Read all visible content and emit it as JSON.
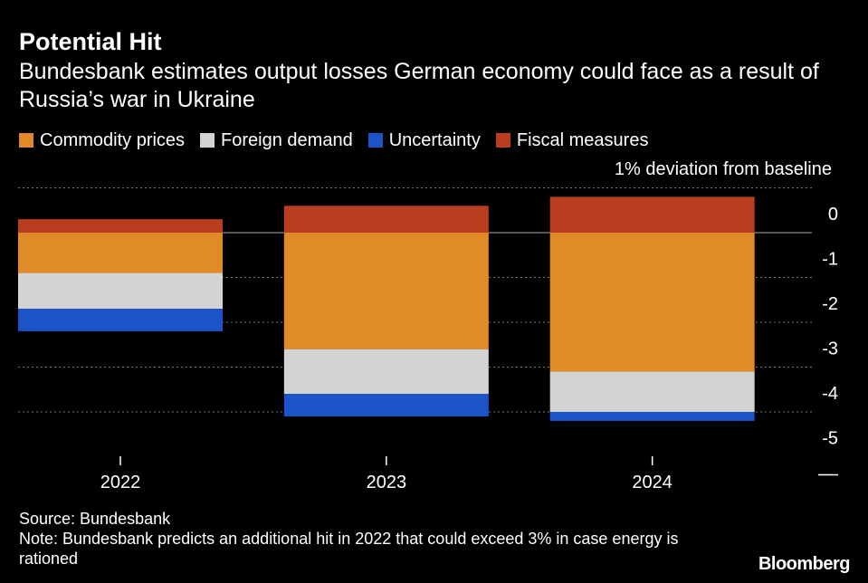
{
  "chart_data": {
    "type": "bar",
    "stacked": true,
    "title": "Potential Hit",
    "subtitle": "Bundesbank estimates output losses German economy could face as a result of Russia’s war in Ukraine",
    "unit_label": "1% deviation from baseline",
    "categories": [
      "2022",
      "2023",
      "2024"
    ],
    "series": [
      {
        "name": "Commodity prices",
        "color": "#e08b27",
        "values": [
          -0.9,
          -2.6,
          -3.1
        ]
      },
      {
        "name": "Foreign demand",
        "color": "#d3d3d3",
        "values": [
          -0.8,
          -1.0,
          -0.9
        ]
      },
      {
        "name": "Uncertainty",
        "color": "#1a54c8",
        "values": [
          -0.5,
          -0.5,
          -0.2
        ]
      },
      {
        "name": "Fiscal measures",
        "color": "#b83e1f",
        "values": [
          0.3,
          0.6,
          0.8
        ]
      }
    ],
    "y_ticks": [
      0,
      -1,
      -2,
      -3,
      -4,
      -5
    ],
    "ylim": [
      -5,
      0.9
    ],
    "grid": true,
    "legend_position": "top-left",
    "axis_position": "right"
  },
  "footer": {
    "source": "Source: Bundesbank",
    "note": "Note: Bundesbank predicts an additional hit in 2022 that could exceed 3% in case energy is rationed",
    "brand": "Bloomberg"
  }
}
